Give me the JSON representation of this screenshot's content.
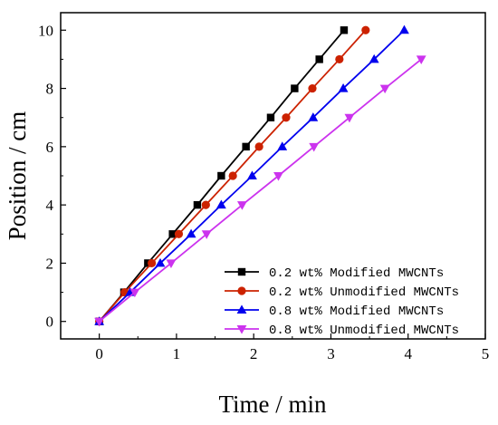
{
  "chart_data": {
    "type": "line",
    "xlabel": "Time / min",
    "ylabel": "Position / cm",
    "xlim": [
      -0.5,
      5
    ],
    "ylim": [
      -0.6,
      10.6
    ],
    "xticks": [
      0,
      1,
      2,
      3,
      4,
      5
    ],
    "yticks": [
      0,
      2,
      4,
      6,
      8,
      10
    ],
    "grid": false,
    "legend_position": "bottom-right",
    "series": [
      {
        "name": "0.2 wt% Modified MWCNTs",
        "color": "#000000",
        "marker": "square",
        "x": [
          0,
          0.32,
          0.63,
          0.95,
          1.27,
          1.58,
          1.9,
          2.22,
          2.53,
          2.85,
          3.17
        ],
        "y": [
          0,
          1,
          2,
          3,
          4,
          5,
          6,
          7,
          8,
          9,
          10
        ]
      },
      {
        "name": "0.2 wt% Unmodified MWCNTs",
        "color": "#cc2200",
        "marker": "circle",
        "x": [
          0,
          0.33,
          0.68,
          1.03,
          1.38,
          1.73,
          2.07,
          2.42,
          2.76,
          3.11,
          3.45
        ],
        "y": [
          0,
          1,
          2,
          3,
          4,
          5,
          6,
          7,
          8,
          9,
          10
        ]
      },
      {
        "name": "0.8 wt% Modified MWCNTs",
        "color": "#0000ee",
        "marker": "triangle-up",
        "x": [
          0,
          0.4,
          0.79,
          1.19,
          1.58,
          1.98,
          2.37,
          2.77,
          3.16,
          3.56,
          3.95
        ],
        "y": [
          0,
          1,
          2,
          3,
          4,
          5,
          6,
          7,
          8,
          9,
          10
        ]
      },
      {
        "name": "0.8 wt% Unmodified MWCNTs",
        "color": "#cc33ee",
        "marker": "triangle-down",
        "x": [
          0,
          0.46,
          0.93,
          1.39,
          1.85,
          2.32,
          2.78,
          3.24,
          3.7,
          4.17
        ],
        "y": [
          0,
          1,
          2,
          3,
          4,
          5,
          6,
          7,
          8,
          9
        ]
      }
    ]
  }
}
